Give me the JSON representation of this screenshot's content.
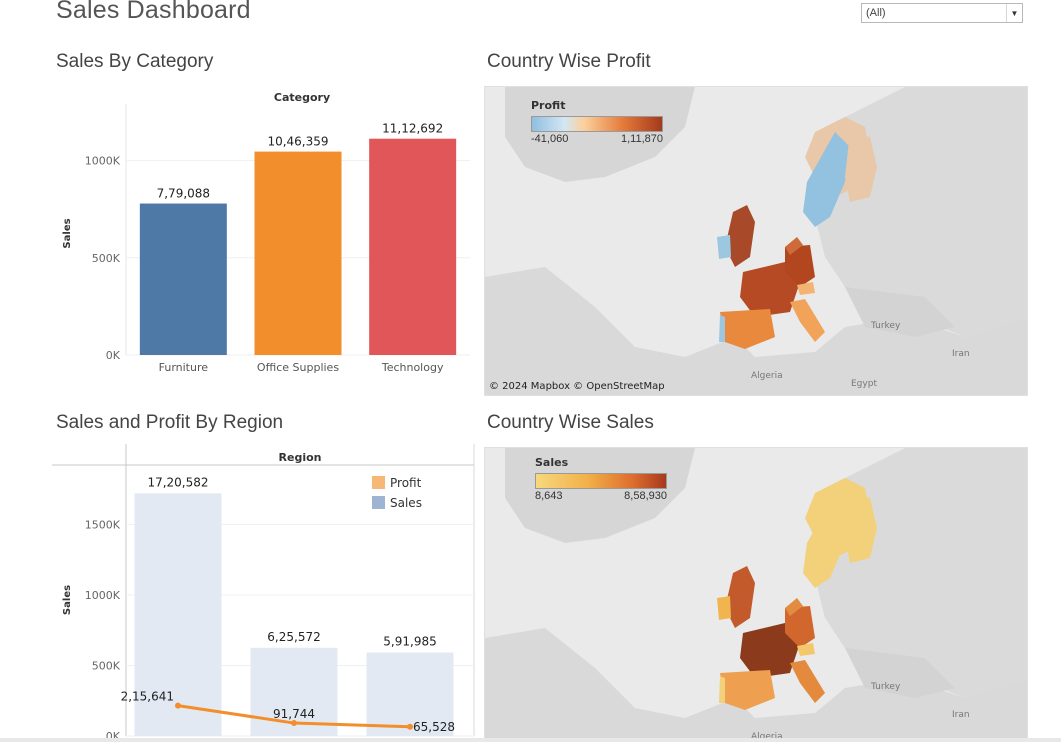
{
  "dashboard": {
    "title": "Sales Dashboard"
  },
  "filter": {
    "selected": "(All)",
    "icon": "chevron-down-icon"
  },
  "panels": {
    "category": {
      "title": "Sales By Category"
    },
    "country_profit": {
      "title": "Country Wise Profit"
    },
    "region": {
      "title": "Sales and Profit By Region"
    },
    "country_sales": {
      "title": "Country Wise Sales"
    }
  },
  "colors": {
    "furniture": "#4e79a7",
    "office_supplies": "#f28e2b",
    "technology": "#e15759",
    "region_bar": "#e3e9f2",
    "profit_line": "#f28e2b",
    "legend_profit_swatch": "#f7b877",
    "legend_sales_swatch": "#9db4d2",
    "map_land": "#d9d9d9",
    "map_water": "#eaeaea"
  },
  "profit_map": {
    "legend_title": "Profit",
    "min_label": "-41,060",
    "max_label": "1,11,870",
    "attribution": "© 2024 Mapbox © OpenStreetMap",
    "places": [
      "Turkey",
      "Iran",
      "Algeria",
      "Egypt"
    ]
  },
  "sales_map": {
    "legend_title": "Sales",
    "min_label": "8,643",
    "max_label": "8,58,930",
    "places": [
      "Turkey",
      "Iran",
      "Algeria"
    ]
  },
  "chart_data": [
    {
      "type": "bar",
      "title": "",
      "header": "Category",
      "ylabel": "Sales",
      "categories": [
        "Furniture",
        "Office Supplies",
        "Technology"
      ],
      "values": [
        779088,
        1046359,
        1112692
      ],
      "value_labels": [
        "7,79,088",
        "10,46,359",
        "11,12,692"
      ],
      "ylim": [
        0,
        1250000
      ],
      "yticks": [
        0,
        500000,
        1000000
      ],
      "ytick_labels": [
        "0K",
        "500K",
        "1000K"
      ],
      "grid": true
    },
    {
      "type": "bar",
      "title": "",
      "header": "Region",
      "ylabel": "Sales",
      "categories": [
        "",
        "",
        ""
      ],
      "legend": [
        "Profit",
        "Sales"
      ],
      "legend_position": "top-right",
      "series": [
        {
          "name": "Sales",
          "type": "bar",
          "values": [
            1720582,
            625572,
            591985
          ],
          "value_labels": [
            "17,20,582",
            "6,25,572",
            "5,91,985"
          ]
        },
        {
          "name": "Profit",
          "type": "line",
          "values": [
            215641,
            91744,
            65528
          ],
          "value_labels": [
            "2,15,641",
            "91,744",
            "65,528"
          ]
        }
      ],
      "ylim": [
        0,
        1900000
      ],
      "yticks": [
        0,
        500000,
        1000000,
        1500000
      ],
      "ytick_labels": [
        "0K",
        "500K",
        "1000K",
        "1500K"
      ],
      "grid": true
    }
  ]
}
